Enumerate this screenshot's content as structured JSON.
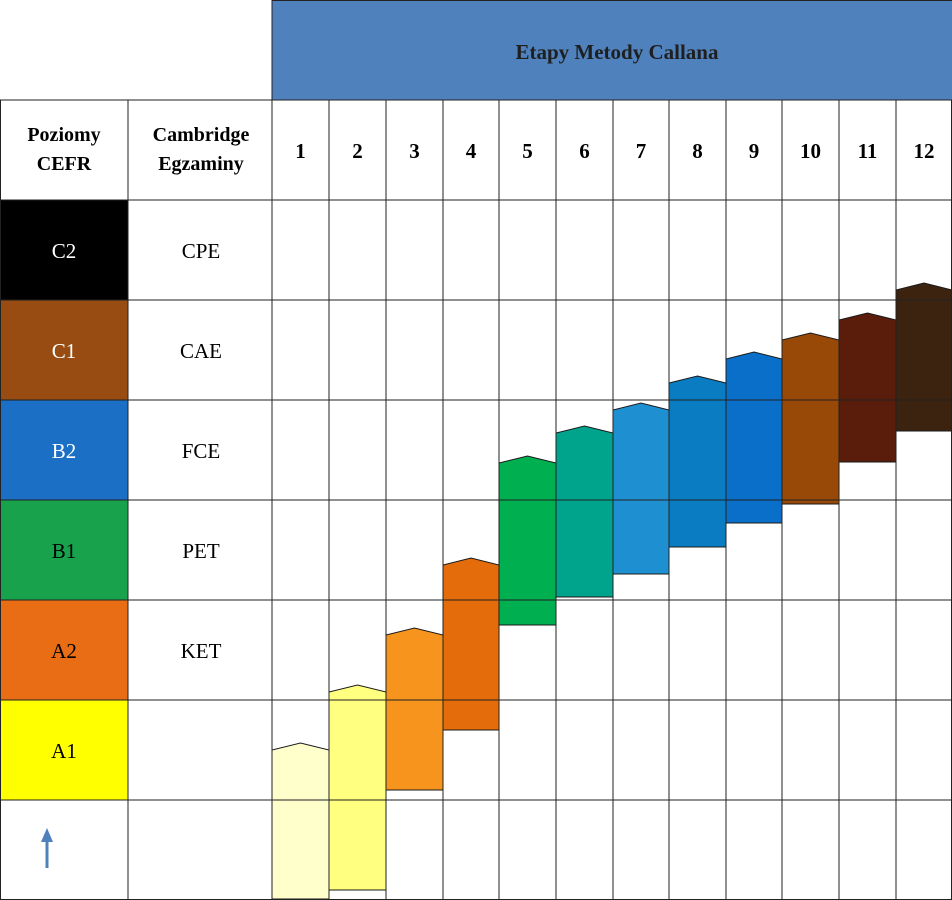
{
  "header": {
    "title": "Etapy Metody Callana"
  },
  "columns": {
    "level_header": [
      "Poziomy",
      "CEFR"
    ],
    "exam_header": [
      "Cambridge",
      "Egzaminy"
    ]
  },
  "stages": [
    "1",
    "2",
    "3",
    "4",
    "5",
    "6",
    "7",
    "8",
    "9",
    "10",
    "11",
    "12"
  ],
  "levels": [
    {
      "code": "C2",
      "exam": "CPE",
      "color": "#000000",
      "text_color": "#ffffff"
    },
    {
      "code": "C1",
      "exam": "CAE",
      "color": "#984c12",
      "text_color": "#ffffff"
    },
    {
      "code": "B2",
      "exam": "FCE",
      "color": "#1b6fc4",
      "text_color": "#ffffff"
    },
    {
      "code": "B1",
      "exam": "PET",
      "color": "#19a24c",
      "text_color": "#000000"
    },
    {
      "code": "A2",
      "exam": "KET",
      "color": "#e86d15",
      "text_color": "#000000"
    },
    {
      "code": "A1",
      "exam": "",
      "color": "#ffff00",
      "text_color": "#000000"
    }
  ],
  "bottom_row": {
    "icon": "up-arrow-icon",
    "icon_color": "#4f81bd"
  },
  "stage_bars": [
    {
      "stage": "1",
      "from": -1.0,
      "to": 0.5,
      "color": "#ffffcc"
    },
    {
      "stage": "2",
      "from": -0.9,
      "to": 1.08,
      "color": "#ffff80"
    },
    {
      "stage": "3",
      "from": 0.1,
      "to": 1.65,
      "color": "#f7941d"
    },
    {
      "stage": "4",
      "from": 0.7,
      "to": 2.35,
      "color": "#e46c0a"
    },
    {
      "stage": "5",
      "from": 1.75,
      "to": 3.37,
      "color": "#00b050"
    },
    {
      "stage": "6",
      "from": 2.03,
      "to": 3.67,
      "color": "#00a48c"
    },
    {
      "stage": "7",
      "from": 2.26,
      "to": 3.9,
      "color": "#1e90d2"
    },
    {
      "stage": "8",
      "from": 2.53,
      "to": 4.17,
      "color": "#0a7dc2"
    },
    {
      "stage": "9",
      "from": 2.77,
      "to": 4.41,
      "color": "#0a6fc8"
    },
    {
      "stage": "10",
      "from": 2.96,
      "to": 4.6,
      "color": "#984807"
    },
    {
      "stage": "11",
      "from": 3.38,
      "to": 4.8,
      "color": "#5a1c0b"
    },
    {
      "stage": "12",
      "from": 3.69,
      "to": 5.1,
      "color": "#3b2310"
    }
  ],
  "style": {
    "header_color": "#4f81bd",
    "grid_color": "#222222"
  }
}
